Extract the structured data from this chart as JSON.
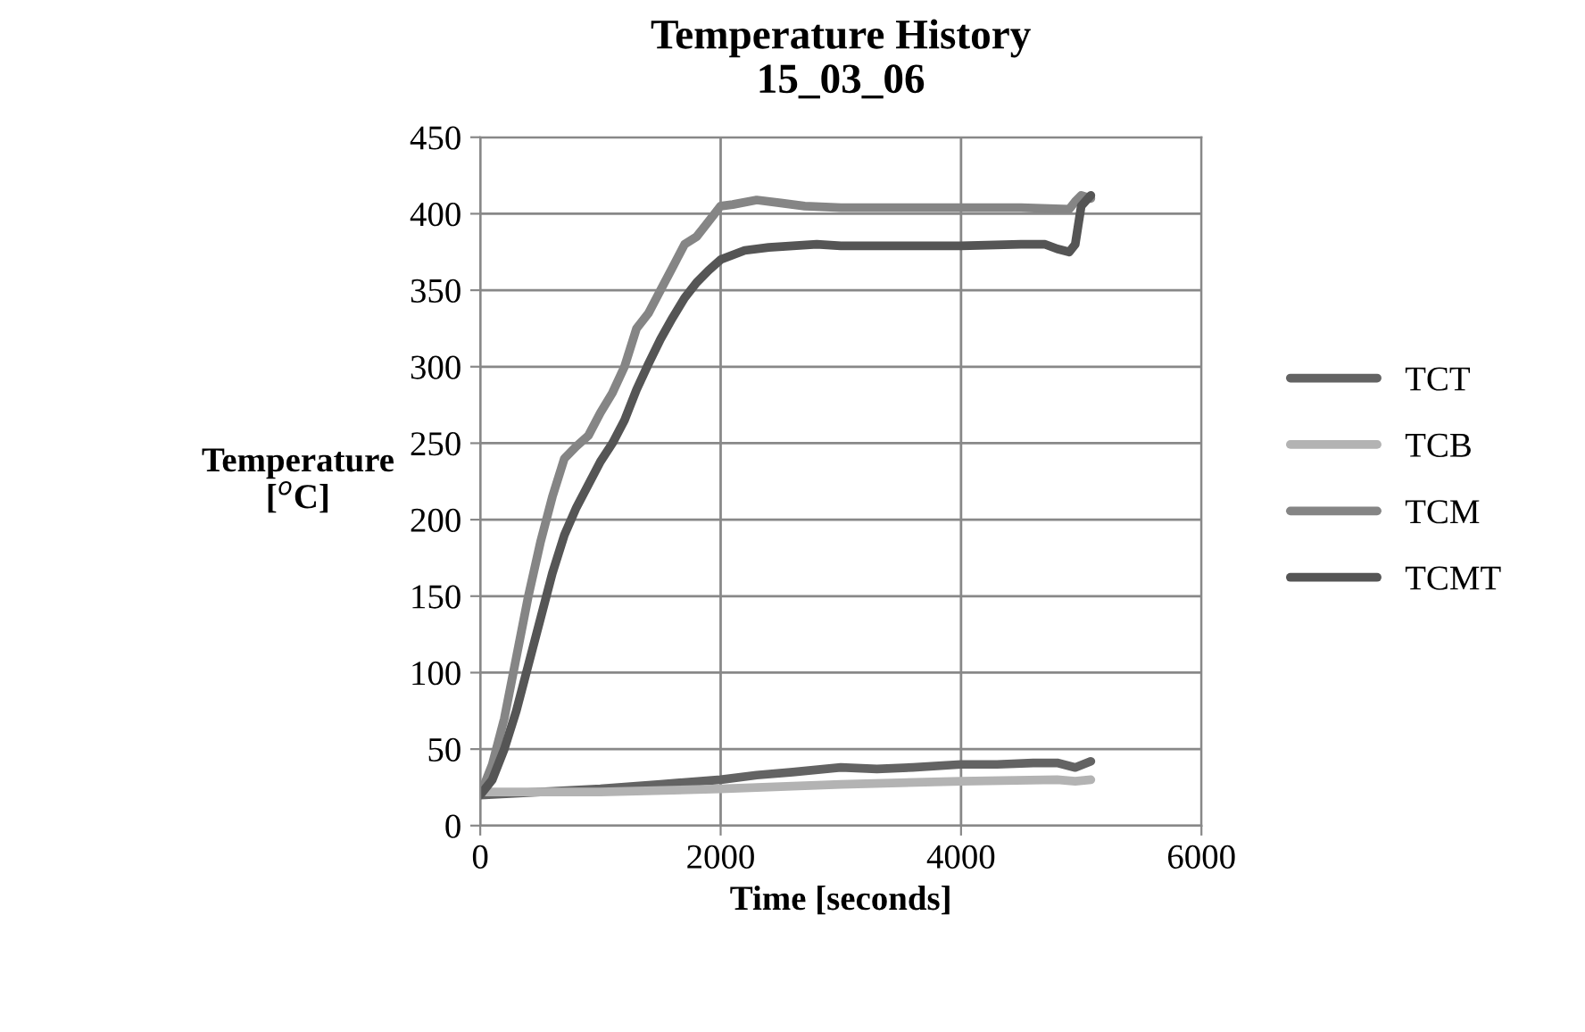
{
  "chart_data": {
    "type": "line",
    "title": "Temperature History\n15_03_06",
    "xlabel": "Time [seconds]",
    "ylabel": "Temperature\n[$^{o}$C]",
    "xlim": [
      0,
      6000
    ],
    "xticks": [
      0,
      2000,
      4000,
      6000
    ],
    "ylim": [
      0,
      450
    ],
    "yticks": [
      0,
      50,
      100,
      150,
      200,
      250,
      300,
      350,
      400,
      450
    ],
    "grid": true,
    "legend": "right",
    "marker": "none",
    "line_style": "solid",
    "series": [
      {
        "name": "TCT",
        "color": "#636363",
        "x": [
          0,
          500,
          1000,
          1500,
          2000,
          2300,
          2600,
          3000,
          3300,
          3600,
          4000,
          4300,
          4600,
          4800,
          4950,
          5080
        ],
        "values": [
          20,
          22,
          24,
          27,
          30,
          33,
          35,
          38,
          37,
          38,
          40,
          40,
          41,
          41,
          38,
          42
        ]
      },
      {
        "name": "TCB",
        "color": "#b3b3b3",
        "x": [
          0,
          1000,
          2000,
          3000,
          4000,
          4800,
          4950,
          5080
        ],
        "values": [
          22,
          22,
          24,
          27,
          29,
          30,
          29,
          30
        ]
      },
      {
        "name": "TCM",
        "color": "#858585",
        "x": [
          0,
          100,
          200,
          300,
          400,
          500,
          600,
          700,
          800,
          900,
          1000,
          1100,
          1200,
          1300,
          1400,
          1500,
          1600,
          1700,
          1800,
          1900,
          2000,
          2100,
          2300,
          2500,
          2700,
          3000,
          3500,
          4000,
          4500,
          4900,
          4950,
          5000,
          5080
        ],
        "values": [
          20,
          40,
          70,
          110,
          150,
          185,
          215,
          240,
          248,
          255,
          270,
          283,
          300,
          325,
          335,
          350,
          365,
          380,
          385,
          395,
          405,
          406,
          409,
          407,
          405,
          404,
          404,
          404,
          404,
          403,
          408,
          412,
          410
        ]
      },
      {
        "name": "TCMT",
        "color": "#555555",
        "x": [
          0,
          100,
          200,
          300,
          400,
          500,
          600,
          700,
          800,
          900,
          1000,
          1100,
          1200,
          1300,
          1400,
          1500,
          1600,
          1700,
          1800,
          1900,
          2000,
          2200,
          2400,
          2600,
          2800,
          3000,
          3500,
          4000,
          4500,
          4700,
          4800,
          4900,
          4950,
          5000,
          5080
        ],
        "values": [
          20,
          30,
          50,
          75,
          105,
          135,
          165,
          190,
          208,
          223,
          238,
          250,
          265,
          285,
          302,
          318,
          332,
          345,
          355,
          363,
          370,
          376,
          378,
          379,
          380,
          379,
          379,
          379,
          380,
          380,
          377,
          375,
          380,
          405,
          412
        ]
      }
    ]
  }
}
